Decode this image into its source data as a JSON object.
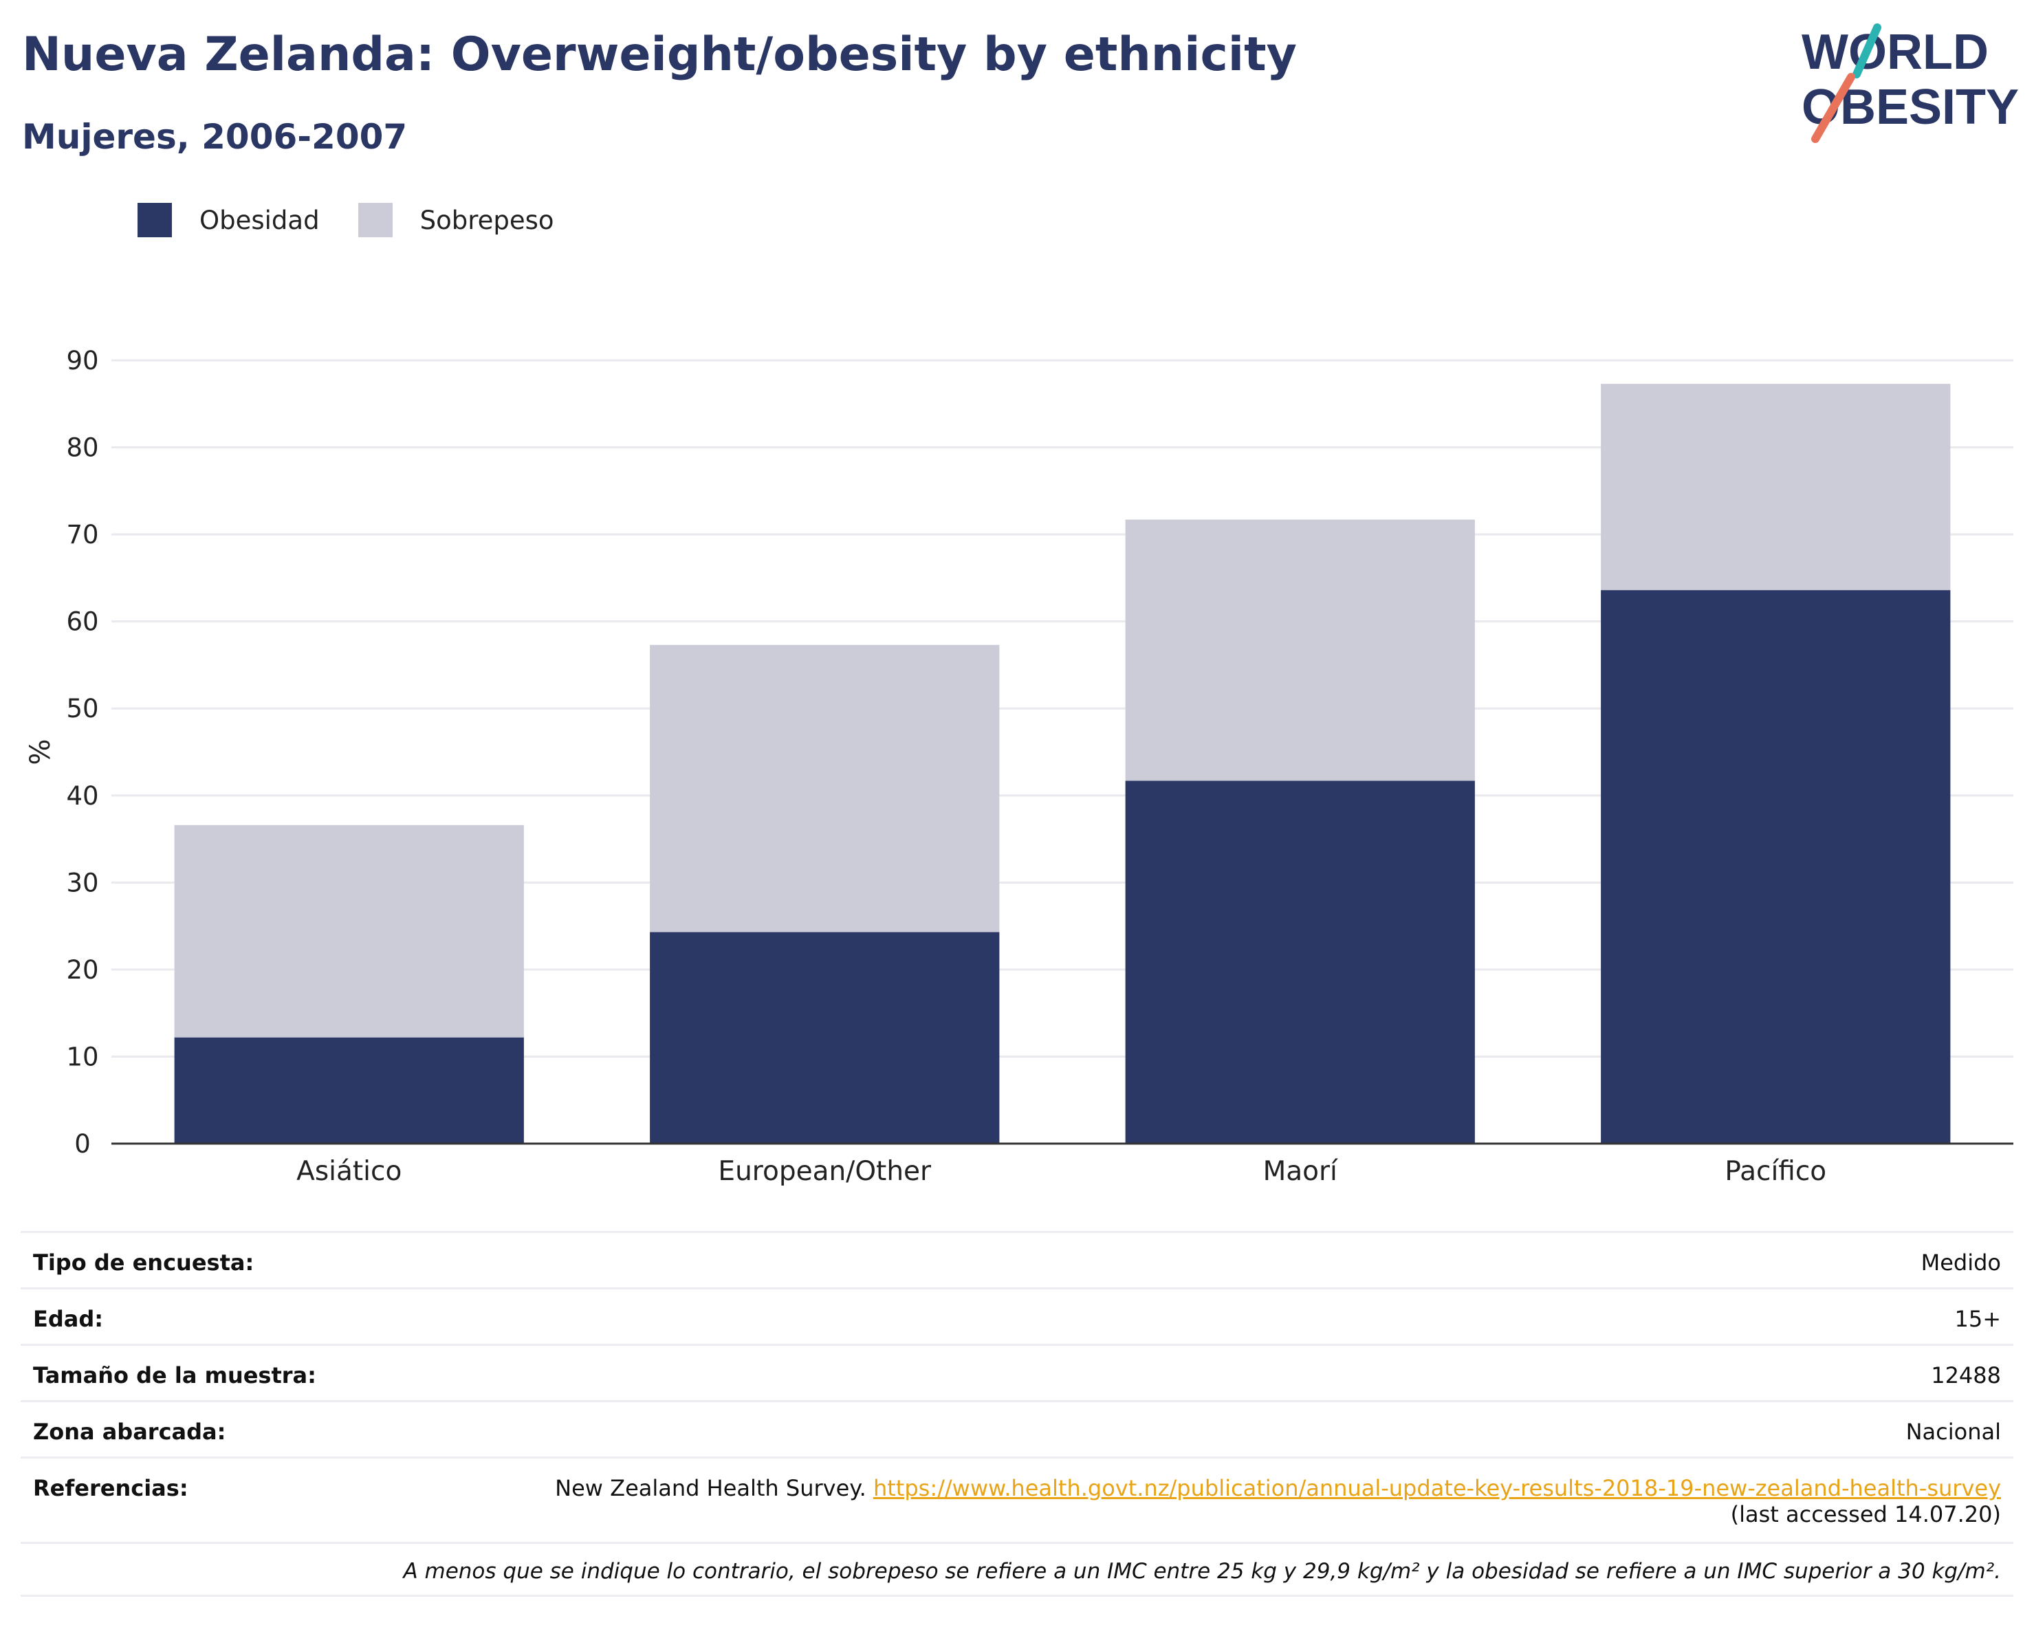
{
  "header": {
    "title": "Nueva Zelanda: Overweight/obesity by ethnicity",
    "subtitle": "Mujeres, 2006-2007"
  },
  "logo": {
    "line1": "WORLD",
    "line2": "OBESITY"
  },
  "colors": {
    "obesidad": "#2b3764",
    "sobrepeso": "#cbccd7",
    "title": "#2a3663",
    "link": "#e8a317",
    "logo_teal": "#2bb3b1",
    "logo_coral": "#e8735a"
  },
  "chart_data": {
    "type": "bar",
    "stacked": true,
    "categories": [
      "Asiático",
      "European/Other",
      "Maorí",
      "Pacífico"
    ],
    "series": [
      {
        "name": "Obesidad",
        "values": [
          12.2,
          24.3,
          41.7,
          63.6
        ]
      },
      {
        "name": "Sobrepeso",
        "values": [
          24.4,
          33.0,
          30.0,
          23.7
        ]
      }
    ],
    "totals": [
      36.6,
      57.3,
      71.7,
      87.3
    ],
    "ylabel": "%",
    "ylim": [
      0,
      90
    ],
    "yticks": [
      0,
      10,
      20,
      30,
      40,
      50,
      60,
      70,
      80,
      90
    ],
    "grid": true,
    "legend_position": "top-left"
  },
  "info": {
    "rows": [
      {
        "label": "Tipo de encuesta:",
        "value": "Medido"
      },
      {
        "label": "Edad:",
        "value": "15+"
      },
      {
        "label": "Tamaño de la muestra:",
        "value": "12488"
      },
      {
        "label": "Zona abarcada:",
        "value": "Nacional"
      }
    ],
    "references": {
      "label": "Referencias:",
      "text": "New Zealand Health Survey.",
      "link": "https://www.health.govt.nz/publication/annual-update-key-results-2018-19-new-zealand-health-survey",
      "accessed": "(last accessed 14.07.20)"
    },
    "footnote": "A menos que se indique lo contrario, el sobrepeso se refiere a un IMC entre 25 kg y 29,9 kg/m² y la obesidad se refiere a un IMC superior a 30 kg/m²."
  }
}
